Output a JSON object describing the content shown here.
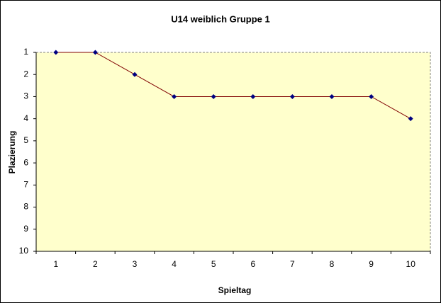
{
  "chart_data": {
    "type": "line",
    "title": "U14 weiblich Gruppe 1",
    "x_label": "Spieltag",
    "y_label": "Plazierung",
    "categories": [
      "1",
      "2",
      "3",
      "4",
      "5",
      "6",
      "7",
      "8",
      "9",
      "10"
    ],
    "series": [
      {
        "color": "#800000",
        "marker_color": "#000080",
        "values": [
          1,
          1,
          2,
          3,
          3,
          3,
          3,
          3,
          3,
          4
        ]
      }
    ],
    "ylim": [
      1,
      10
    ],
    "yticks": [
      1,
      2,
      3,
      4,
      5,
      6,
      7,
      8,
      9,
      10
    ],
    "y_reversed": true,
    "background": "#ffffcc",
    "grid": false
  }
}
